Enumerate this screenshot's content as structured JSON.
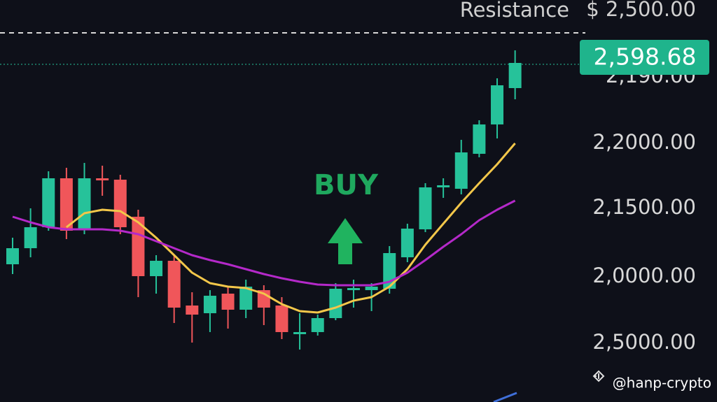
{
  "chart_data": {
    "type": "candlestick",
    "open": [
      197,
      220,
      250,
      320,
      247,
      320,
      318,
      265,
      180,
      202,
      138,
      127,
      155,
      132,
      160,
      138,
      97,
      100,
      120,
      160,
      160,
      162,
      207,
      247,
      307,
      305,
      355,
      397,
      449
    ],
    "high": [
      235,
      277,
      330,
      335,
      342,
      338,
      325,
      275,
      210,
      210,
      157,
      160,
      165,
      175,
      167,
      150,
      127,
      125,
      170,
      175,
      170,
      223,
      255,
      313,
      320,
      375,
      403,
      463,
      503
    ],
    "low": [
      183,
      207,
      245,
      233,
      240,
      295,
      240,
      150,
      155,
      113,
      85,
      100,
      105,
      120,
      110,
      90,
      75,
      95,
      117,
      135,
      130,
      155,
      200,
      243,
      292,
      297,
      350,
      377,
      433
    ],
    "close": [
      220,
      250,
      320,
      245,
      320,
      317,
      250,
      180,
      202,
      135,
      125,
      152,
      132,
      165,
      135,
      100,
      100,
      120,
      162,
      163,
      165,
      213,
      248,
      307,
      310,
      357,
      397,
      453,
      485
    ],
    "up_color": "#26c29a",
    "down_color": "#f0565a",
    "series": [
      {
        "color": "#f3c74a",
        "values": [
          null,
          null,
          null,
          250,
          270,
          275,
          273,
          257,
          235,
          210,
          185,
          170,
          165,
          163,
          155,
          140,
          130,
          128,
          135,
          145,
          150,
          165,
          190,
          225,
          255,
          285,
          313,
          340,
          370
        ]
      },
      {
        "color": "#b429c9",
        "values": [
          265,
          257,
          250,
          247,
          247,
          247,
          245,
          240,
          230,
          220,
          210,
          203,
          197,
          190,
          183,
          177,
          172,
          168,
          167,
          167,
          167,
          172,
          185,
          203,
          222,
          240,
          260,
          275,
          288
        ]
      }
    ],
    "ylim": [
      0,
      575
    ],
    "price_labels": [
      "2,190.00",
      "2,2000.00",
      "2,1500.00",
      "2,0000.00",
      "2,5000.00"
    ],
    "resistance_label": "Resistance",
    "resistance_price": "$ 2,500.00",
    "current_price": "2,598.68",
    "signal": "BUY",
    "watermark": "@hanp-crypto"
  }
}
